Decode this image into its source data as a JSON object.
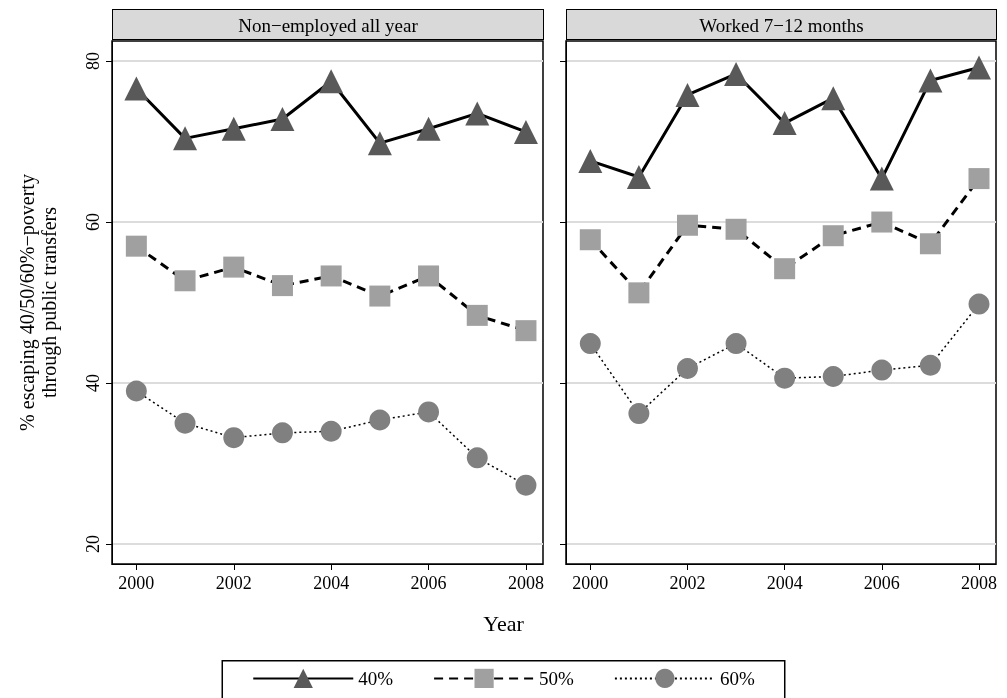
{
  "chart_data": [
    {
      "type": "line",
      "title": "Non−employed all year",
      "xlabel": "Year",
      "ylabel": "% escaping 40/50/60%−poverty\nthrough public transfers",
      "x": [
        2000,
        2001,
        2002,
        2003,
        2004,
        2005,
        2006,
        2007,
        2008
      ],
      "xlim": [
        1999.5,
        2008.35
      ],
      "xticks": [
        2000,
        2002,
        2004,
        2006,
        2008
      ],
      "ylim": [
        17.5,
        82.5
      ],
      "yticks": [
        20,
        40,
        60,
        80
      ],
      "grid": "y",
      "legend": "bottom",
      "series": [
        {
          "name": "40%",
          "color": "#595959",
          "marker": "triangle",
          "line_style": "solid",
          "values": [
            76.6,
            70.4,
            71.6,
            72.8,
            77.5,
            69.8,
            71.6,
            73.5,
            71.2
          ]
        },
        {
          "name": "50%",
          "color": "#a0a0a0",
          "marker": "square",
          "line_style": "dashed",
          "values": [
            57.0,
            52.7,
            54.4,
            52.1,
            53.3,
            50.8,
            53.3,
            48.4,
            46.5
          ]
        },
        {
          "name": "60%",
          "color": "#808080",
          "marker": "circle",
          "line_style": "dotted",
          "values": [
            39.0,
            35.0,
            33.2,
            33.8,
            34.0,
            35.4,
            36.4,
            30.7,
            27.3
          ]
        }
      ]
    },
    {
      "type": "line",
      "title": "Worked 7−12 months",
      "x": [
        2000,
        2001,
        2002,
        2003,
        2004,
        2005,
        2006,
        2007,
        2008
      ],
      "xlim": [
        1999.5,
        2008.35
      ],
      "xticks": [
        2000,
        2002,
        2004,
        2006,
        2008
      ],
      "ylim": [
        17.5,
        82.5
      ],
      "yticks": [
        20,
        40,
        60,
        80
      ],
      "grid": "y",
      "tick_labels": "x",
      "series": [
        {
          "color": "#595959",
          "marker": "triangle",
          "line_style": "solid",
          "values": [
            67.6,
            65.6,
            75.8,
            78.4,
            72.3,
            75.4,
            65.4,
            77.6,
            79.2
          ]
        },
        {
          "color": "#a0a0a0",
          "marker": "square",
          "line_style": "dashed",
          "values": [
            57.8,
            51.2,
            59.6,
            59.1,
            54.2,
            58.3,
            60.0,
            57.3,
            65.4
          ]
        },
        {
          "color": "#808080",
          "marker": "circle",
          "line_style": "dotted",
          "values": [
            44.9,
            36.2,
            41.8,
            44.9,
            40.6,
            40.8,
            41.6,
            42.2,
            49.8
          ]
        }
      ]
    }
  ]
}
